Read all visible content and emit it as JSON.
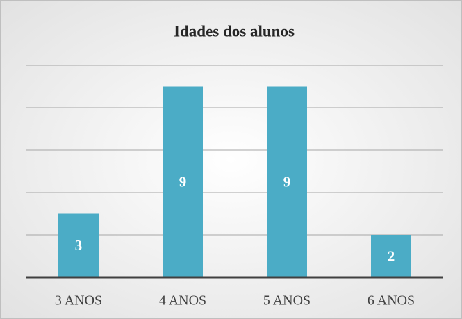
{
  "chart_data": {
    "type": "bar",
    "title": "Idades dos alunos",
    "categories": [
      "3 ANOS",
      "4 ANOS",
      "5 ANOS",
      "6 ANOS"
    ],
    "values": [
      3,
      9,
      9,
      2
    ],
    "color": "#4bacc6",
    "ylim": [
      0,
      10
    ],
    "yticks": [
      0,
      2,
      4,
      6,
      8,
      10
    ],
    "grid": true
  }
}
